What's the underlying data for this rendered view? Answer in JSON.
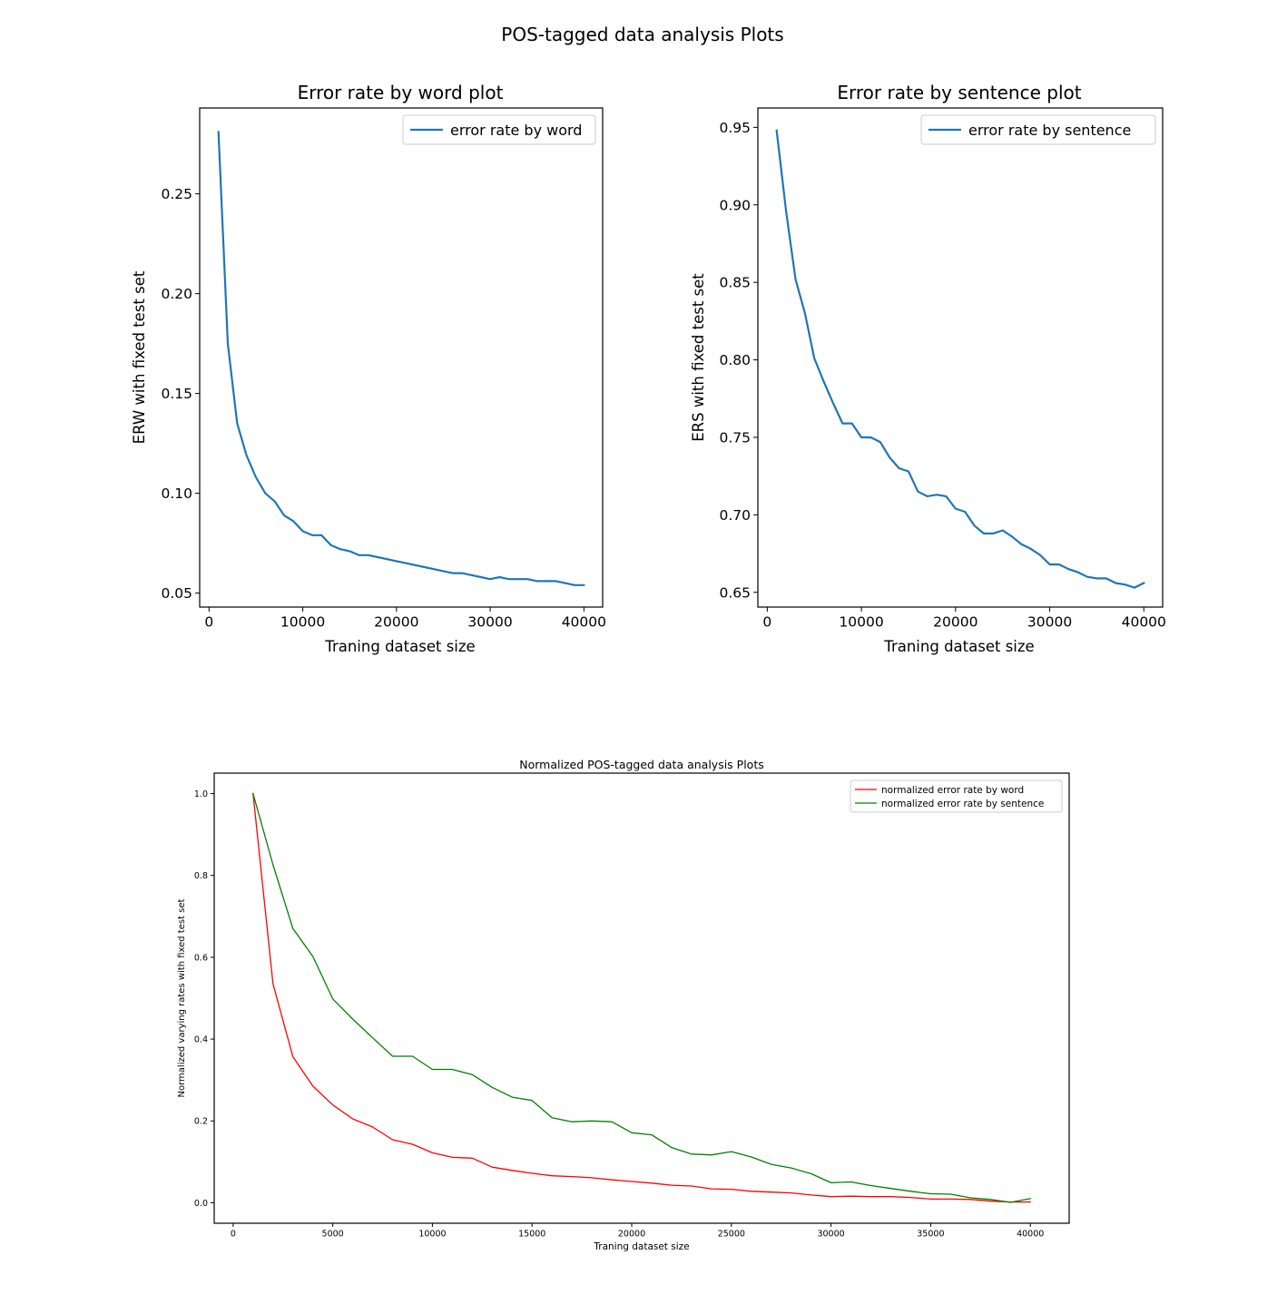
{
  "figure": {
    "suptitle": "POS-tagged data analysis Plots"
  },
  "chart_data": [
    {
      "type": "line",
      "title": "Error rate by word plot",
      "xlabel": "Traning dataset size",
      "ylabel": "ERW with fixed test set",
      "xlim": [
        -1000,
        42000
      ],
      "ylim": [
        0.043,
        0.293
      ],
      "xticks": [
        0,
        10000,
        20000,
        30000,
        40000
      ],
      "yticks": [
        0.05,
        0.1,
        0.15,
        0.2,
        0.25
      ],
      "xtick_labels": [
        "0",
        "10000",
        "20000",
        "30000",
        "40000"
      ],
      "ytick_labels": [
        "0.05",
        "0.10",
        "0.15",
        "0.20",
        "0.25"
      ],
      "legend": "top-right",
      "series": [
        {
          "name": "error rate by word",
          "color": "#1f77b4",
          "x": [
            1000,
            2000,
            3000,
            4000,
            5000,
            6000,
            7000,
            8000,
            9000,
            10000,
            11000,
            12000,
            13000,
            14000,
            15000,
            16000,
            17000,
            18000,
            19000,
            20000,
            21000,
            22000,
            23000,
            24000,
            25000,
            26000,
            27000,
            28000,
            29000,
            30000,
            31000,
            32000,
            33000,
            34000,
            35000,
            36000,
            37000,
            38000,
            39000,
            40000
          ],
          "values": [
            0.281,
            0.175,
            0.135,
            0.119,
            0.108,
            0.1,
            0.096,
            0.089,
            0.086,
            0.081,
            0.079,
            0.079,
            0.074,
            0.072,
            0.071,
            0.069,
            0.069,
            0.068,
            0.067,
            0.066,
            0.065,
            0.064,
            0.063,
            0.062,
            0.061,
            0.06,
            0.06,
            0.059,
            0.058,
            0.057,
            0.058,
            0.057,
            0.057,
            0.057,
            0.056,
            0.056,
            0.056,
            0.055,
            0.054,
            0.054
          ]
        }
      ]
    },
    {
      "type": "line",
      "title": "Error rate by sentence plot",
      "xlabel": "Traning dataset size",
      "ylabel": "ERS with fixed test set",
      "xlim": [
        -1000,
        42000
      ],
      "ylim": [
        0.6405,
        0.9625
      ],
      "xticks": [
        0,
        10000,
        20000,
        30000,
        40000
      ],
      "yticks": [
        0.65,
        0.7,
        0.75,
        0.8,
        0.85,
        0.9,
        0.95
      ],
      "xtick_labels": [
        "0",
        "10000",
        "20000",
        "30000",
        "40000"
      ],
      "ytick_labels": [
        "0.65",
        "0.70",
        "0.75",
        "0.80",
        "0.85",
        "0.90",
        "0.95"
      ],
      "legend": "top-right",
      "series": [
        {
          "name": "error rate by sentence",
          "color": "#1f77b4",
          "x": [
            1000,
            2000,
            3000,
            4000,
            5000,
            6000,
            7000,
            8000,
            9000,
            10000,
            11000,
            12000,
            13000,
            14000,
            15000,
            16000,
            17000,
            18000,
            19000,
            20000,
            21000,
            22000,
            23000,
            24000,
            25000,
            26000,
            27000,
            28000,
            29000,
            30000,
            31000,
            32000,
            33000,
            34000,
            35000,
            36000,
            37000,
            38000,
            39000,
            40000
          ],
          "values": [
            0.948,
            0.896,
            0.852,
            0.83,
            0.801,
            0.786,
            0.772,
            0.759,
            0.759,
            0.75,
            0.75,
            0.747,
            0.737,
            0.73,
            0.728,
            0.715,
            0.712,
            0.713,
            0.712,
            0.704,
            0.702,
            0.693,
            0.688,
            0.688,
            0.69,
            0.686,
            0.681,
            0.678,
            0.674,
            0.668,
            0.668,
            0.665,
            0.663,
            0.66,
            0.659,
            0.659,
            0.656,
            0.655,
            0.653,
            0.656
          ]
        }
      ]
    },
    {
      "type": "line",
      "title": "Normalized POS-tagged data analysis Plots",
      "xlabel": "Traning dataset size",
      "ylabel": "Normalized varying rates with fixed test set",
      "xlim": [
        -950,
        41950
      ],
      "ylim": [
        -0.05,
        1.05
      ],
      "xticks": [
        0,
        5000,
        10000,
        15000,
        20000,
        25000,
        30000,
        35000,
        40000
      ],
      "yticks": [
        0.0,
        0.2,
        0.4,
        0.6,
        0.8,
        1.0
      ],
      "xtick_labels": [
        "0",
        "5000",
        "10000",
        "15000",
        "20000",
        "25000",
        "30000",
        "35000",
        "40000"
      ],
      "ytick_labels": [
        "0.0",
        "0.2",
        "0.4",
        "0.6",
        "0.8",
        "1.0"
      ],
      "legend": "top-right",
      "series": [
        {
          "name": "normalized error rate by word",
          "color": "#ff0000",
          "x": [
            1000,
            2000,
            3000,
            4000,
            5000,
            6000,
            7000,
            8000,
            9000,
            10000,
            11000,
            12000,
            13000,
            14000,
            15000,
            16000,
            17000,
            18000,
            19000,
            20000,
            21000,
            22000,
            23000,
            24000,
            25000,
            26000,
            27000,
            28000,
            29000,
            30000,
            31000,
            32000,
            33000,
            34000,
            35000,
            36000,
            37000,
            38000,
            39000,
            40000
          ],
          "values": [
            1.0,
            0.535,
            0.357,
            0.285,
            0.239,
            0.205,
            0.185,
            0.154,
            0.143,
            0.122,
            0.111,
            0.109,
            0.087,
            0.079,
            0.072,
            0.066,
            0.064,
            0.061,
            0.056,
            0.052,
            0.048,
            0.043,
            0.041,
            0.034,
            0.033,
            0.028,
            0.026,
            0.024,
            0.019,
            0.015,
            0.016,
            0.015,
            0.015,
            0.013,
            0.009,
            0.009,
            0.008,
            0.004,
            0.002,
            0.002
          ]
        },
        {
          "name": "normalized error rate by sentence",
          "color": "#008000",
          "x": [
            1000,
            2000,
            3000,
            4000,
            5000,
            6000,
            7000,
            8000,
            9000,
            10000,
            11000,
            12000,
            13000,
            14000,
            15000,
            16000,
            17000,
            18000,
            19000,
            20000,
            21000,
            22000,
            23000,
            24000,
            25000,
            26000,
            27000,
            28000,
            29000,
            30000,
            31000,
            32000,
            33000,
            34000,
            35000,
            36000,
            37000,
            38000,
            39000,
            40000
          ],
          "values": [
            1.0,
            0.826,
            0.67,
            0.602,
            0.498,
            0.449,
            0.403,
            0.358,
            0.358,
            0.326,
            0.326,
            0.313,
            0.282,
            0.258,
            0.25,
            0.208,
            0.198,
            0.2,
            0.198,
            0.171,
            0.166,
            0.135,
            0.119,
            0.117,
            0.125,
            0.112,
            0.094,
            0.085,
            0.071,
            0.049,
            0.051,
            0.042,
            0.035,
            0.028,
            0.022,
            0.021,
            0.012,
            0.008,
            0.001,
            0.01
          ]
        }
      ]
    }
  ]
}
